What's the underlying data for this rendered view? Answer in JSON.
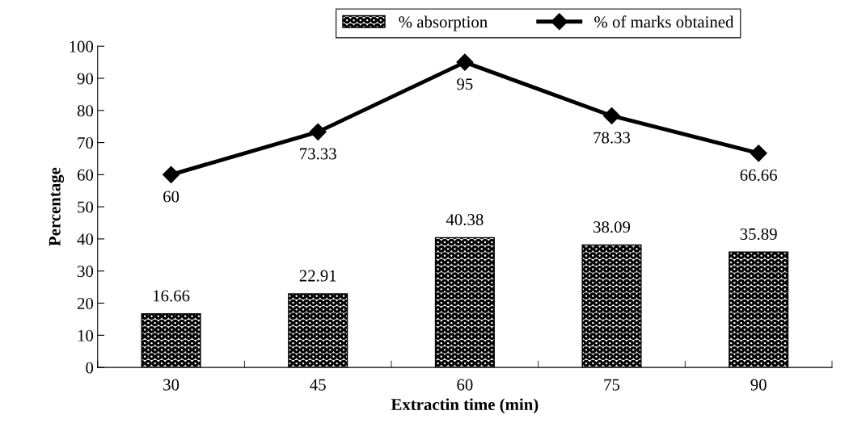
{
  "chart_data": {
    "type": "bar",
    "xlabel": "Extractin time (min)",
    "ylabel": "Percentage",
    "categories": [
      "30",
      "45",
      "60",
      "75",
      "90"
    ],
    "series": [
      {
        "name": "% absorption",
        "color": "#000000",
        "values": [
          16.66,
          22.91,
          40.38,
          38.09,
          35.89
        ]
      },
      {
        "name": "% of marks obtained",
        "type": "line",
        "color": "#000000",
        "marker": "diamond",
        "line_style": "solid",
        "values": [
          60,
          73.33,
          95,
          78.33,
          66.66
        ]
      }
    ],
    "ylim": [
      0,
      100
    ],
    "yticks": [
      0,
      10,
      20,
      30,
      40,
      50,
      60,
      70,
      80,
      90,
      100
    ],
    "data_labels": true,
    "grid": false,
    "legend": "top"
  }
}
